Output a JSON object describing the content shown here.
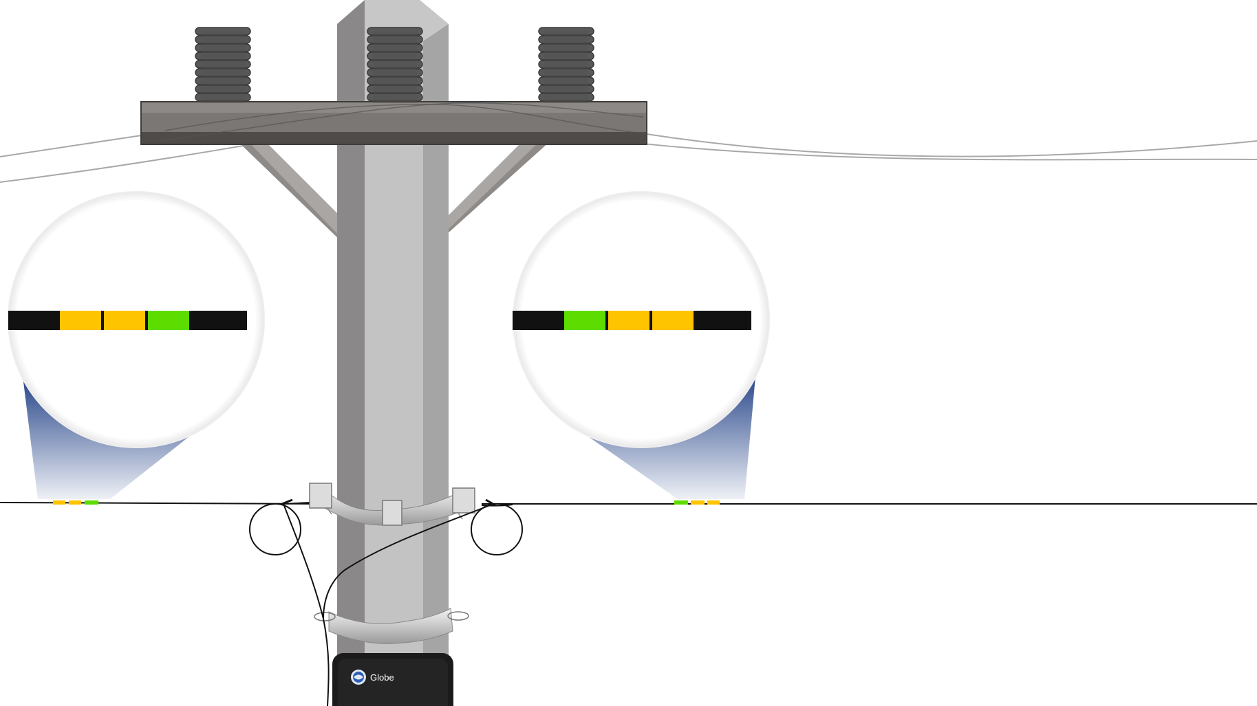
{
  "colors": {
    "background": "#ffffff",
    "pole_light": "#c0c0c0",
    "pole_dark": "#8a8888",
    "crossarm_top": "#8a8784",
    "crossarm_bottom": "#4e4b48",
    "insulator": "#585858",
    "cable_black": "#111111",
    "marker_yellow": "#ffc400",
    "marker_green": "#5ddc00",
    "magnifier_cone": "#2c4a8c",
    "power_line": "#a8a8a8",
    "terminal_box": "#1b1b1b"
  },
  "icons": {
    "brand_logo": "globe-logo-icon"
  },
  "markers": {
    "left": [
      "black",
      "yellow",
      "yellow",
      "green",
      "black"
    ],
    "right": [
      "black",
      "green",
      "yellow",
      "yellow",
      "black"
    ]
  },
  "terminal_box": {
    "brand": "Globe"
  }
}
